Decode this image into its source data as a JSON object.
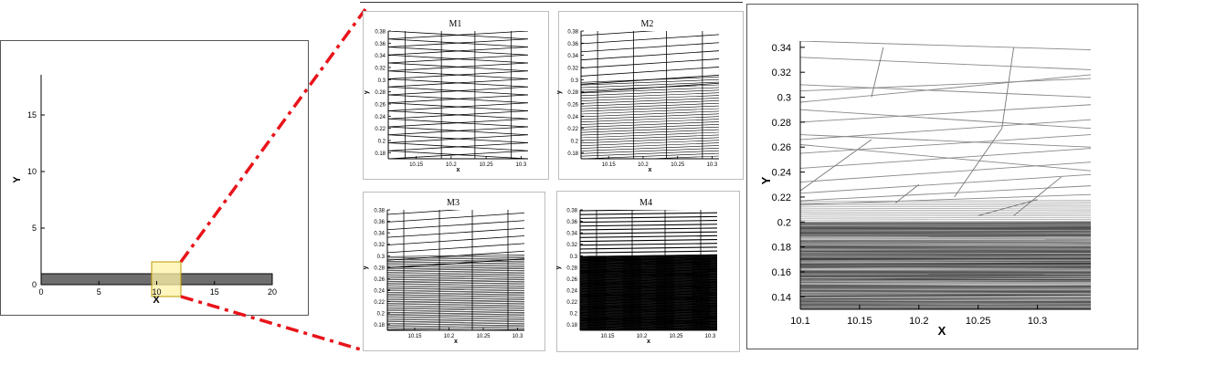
{
  "overview": {
    "x_axis_label": "X",
    "y_axis_label": "Y",
    "x_ticks": [
      "0",
      "5",
      "10",
      "15",
      "20"
    ],
    "y_ticks": [
      "0",
      "5",
      "10",
      "15"
    ]
  },
  "panels": [
    {
      "title": "M1",
      "x_axis_label": "x",
      "y_axis_label": "y",
      "x_ticks": [
        "10.15",
        "10.2",
        "10.25",
        "10.3"
      ],
      "y_ticks": [
        "0.18",
        "0.2",
        "0.22",
        "0.24",
        "0.26",
        "0.28",
        "0.3",
        "0.32",
        "0.34",
        "0.36",
        "0.38"
      ]
    },
    {
      "title": "M2",
      "x_axis_label": "x",
      "y_axis_label": "y",
      "x_ticks": [
        "10.15",
        "10.2",
        "10.25",
        "10.3"
      ],
      "y_ticks": [
        "0.18",
        "0.2",
        "0.22",
        "0.24",
        "0.26",
        "0.28",
        "0.3",
        "0.32",
        "0.34",
        "0.36",
        "0.38"
      ]
    },
    {
      "title": "M3",
      "x_axis_label": "x",
      "y_axis_label": "y",
      "x_ticks": [
        "10.15",
        "10.2",
        "10.25",
        "10.3"
      ],
      "y_ticks": [
        "0.18",
        "0.2",
        "0.22",
        "0.24",
        "0.26",
        "0.28",
        "0.3",
        "0.32",
        "0.34",
        "0.36",
        "0.38"
      ]
    },
    {
      "title": "M4",
      "x_axis_label": "x",
      "y_axis_label": "y",
      "x_ticks": [
        "10.15",
        "10.2",
        "10.25",
        "10.3"
      ],
      "y_ticks": [
        "0.18",
        "0.2",
        "0.22",
        "0.24",
        "0.26",
        "0.28",
        "0.3",
        "0.32",
        "0.34",
        "0.36",
        "0.38"
      ]
    }
  ],
  "detail": {
    "x_axis_label": "X",
    "y_axis_label": "Y",
    "x_ticks": [
      "10.1",
      "10.15",
      "10.2",
      "10.25",
      "10.3"
    ],
    "y_ticks": [
      "0.14",
      "0.16",
      "0.18",
      "0.2",
      "0.22",
      "0.24",
      "0.26",
      "0.28",
      "0.3",
      "0.32",
      "0.34"
    ]
  },
  "colors": {
    "zoom_connector": "#e8141a",
    "highlight_fill": "#fff3a8",
    "highlight_stroke": "#b89b00",
    "domain_fill": "#6e6e6e"
  }
}
